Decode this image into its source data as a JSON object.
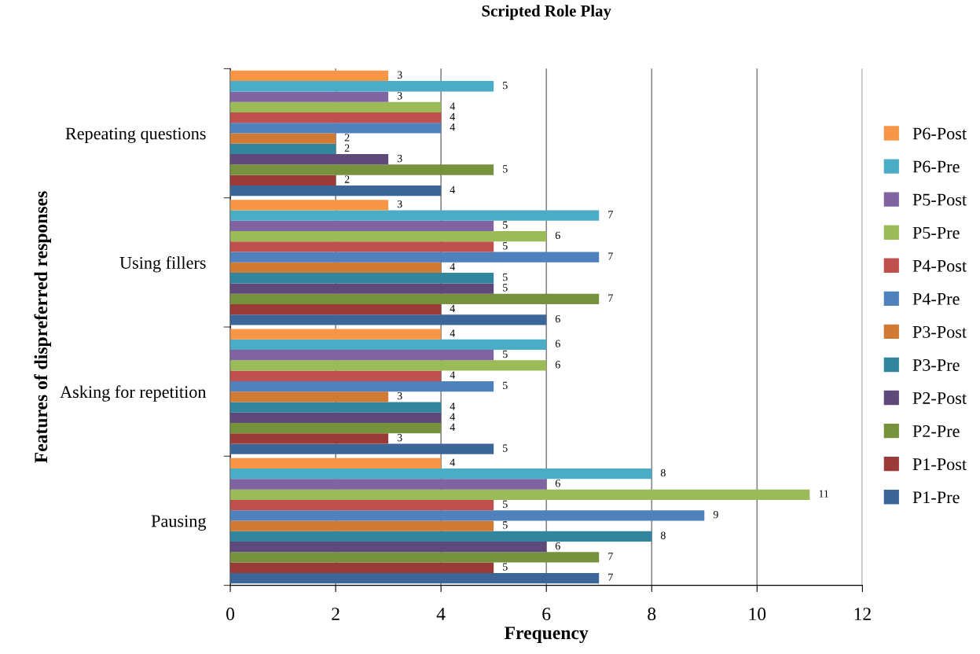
{
  "chart_data": {
    "type": "bar",
    "orientation": "horizontal",
    "title": "Scripted Role Play",
    "xlabel": "Frequency",
    "ylabel": "Features of dispreferred responses",
    "categories": [
      "Repeating questions",
      "Using fillers",
      "Asking for repetition",
      "Pausing"
    ],
    "series": [
      {
        "name": "P1-Pre",
        "color": "#3c6598",
        "values": [
          4,
          6,
          5,
          7
        ]
      },
      {
        "name": "P1-Post",
        "color": "#9b3b38",
        "values": [
          2,
          4,
          3,
          5
        ]
      },
      {
        "name": "P2-Pre",
        "color": "#76923c",
        "values": [
          5,
          7,
          4,
          7
        ]
      },
      {
        "name": "P2-Post",
        "color": "#5f497a",
        "values": [
          3,
          5,
          4,
          6
        ]
      },
      {
        "name": "P3-Pre",
        "color": "#31859c",
        "values": [
          2,
          5,
          4,
          8
        ]
      },
      {
        "name": "P3-Post",
        "color": "#d07a34",
        "values": [
          2,
          4,
          3,
          5
        ]
      },
      {
        "name": "P4-Pre",
        "color": "#4f81bd",
        "values": [
          4,
          7,
          5,
          9
        ]
      },
      {
        "name": "P4-Post",
        "color": "#c0504d",
        "values": [
          4,
          5,
          4,
          5
        ]
      },
      {
        "name": "P5-Pre",
        "color": "#9bbb59",
        "values": [
          4,
          6,
          6,
          11
        ]
      },
      {
        "name": "P5-Post",
        "color": "#8064a2",
        "values": [
          3,
          5,
          5,
          6
        ]
      },
      {
        "name": "P6-Pre",
        "color": "#4bacc6",
        "values": [
          5,
          7,
          6,
          8
        ]
      },
      {
        "name": "P6-Post",
        "color": "#f79646",
        "values": [
          3,
          3,
          4,
          4
        ]
      }
    ],
    "xlim": [
      0,
      12
    ],
    "xticks": [
      0,
      2,
      4,
      6,
      8,
      10,
      12
    ],
    "grid": "x",
    "legend": "right",
    "data_labels": true
  }
}
